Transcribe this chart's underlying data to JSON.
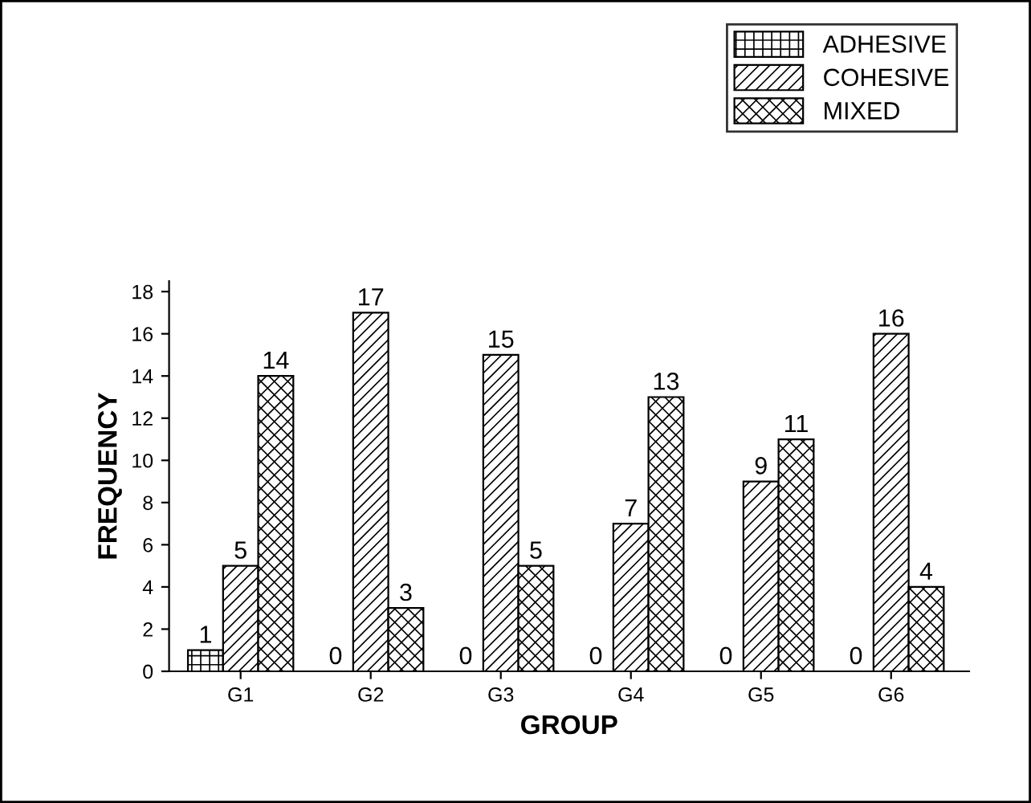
{
  "chart_data": {
    "type": "bar",
    "xlabel": "GROUP",
    "ylabel": "FREQUENCY",
    "categories": [
      "G1",
      "G2",
      "G3",
      "G4",
      "G5",
      "G6"
    ],
    "series": [
      {
        "name": "ADHESIVE",
        "color": "#000000",
        "values": [
          1,
          0,
          0,
          0,
          0,
          0
        ]
      },
      {
        "name": "COHESIVE",
        "color": "#000000",
        "values": [
          5,
          17,
          15,
          7,
          9,
          16
        ]
      },
      {
        "name": "MIXED",
        "color": "#000000",
        "values": [
          14,
          3,
          5,
          13,
          11,
          4
        ]
      }
    ],
    "ylim": [
      0,
      18.5
    ],
    "yticks": [
      0,
      2,
      4,
      6,
      8,
      10,
      12,
      14,
      16,
      18
    ],
    "data_labels": true,
    "legend": "top right",
    "grid": false
  }
}
